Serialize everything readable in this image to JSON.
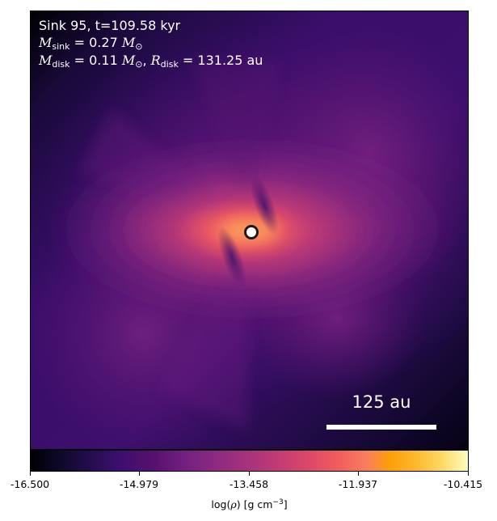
{
  "annotation": {
    "title": "Sink 95, t=109.58 kyr",
    "sink_mass_symbol": "M",
    "sink_mass_sub": "sink",
    "sink_mass_value": "= 0.27",
    "sink_mass_unit": "M",
    "sink_mass_unit_sub": "⊙",
    "disk_mass_symbol": "M",
    "disk_mass_sub": "disk",
    "disk_mass_value": "= 0.11",
    "disk_mass_unit": "M",
    "disk_mass_unit_sub": "⊙",
    "disk_radius_symbol": "R",
    "disk_radius_sub": "disk",
    "disk_radius_value": "= 131.25 au"
  },
  "scale_bar": {
    "label": "125 au"
  },
  "colorbar": {
    "colormap": "inferno",
    "min": -16.5,
    "max": -10.415,
    "ticks": [
      "-16.500",
      "-14.979",
      "-13.458",
      "-11.937",
      "-10.415"
    ],
    "label_prefix": "log(",
    "label_rho": "ρ",
    "label_mid": ") [g cm",
    "label_exp": "−3",
    "label_suffix": "]"
  },
  "colors": {
    "background_dark": "#0d0320",
    "disk_core": "#f58860",
    "marker_fill": "#ffffff",
    "marker_edge": "#1a1a1a"
  }
}
